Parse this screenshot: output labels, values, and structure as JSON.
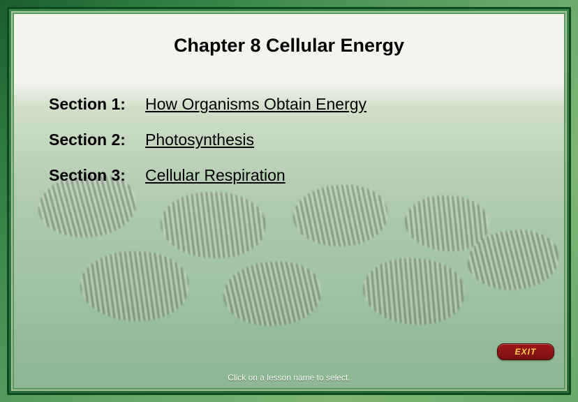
{
  "chapter": {
    "number": "Chapter 8",
    "title": "Cellular Energy",
    "full": "Chapter 8   Cellular Energy"
  },
  "sections": [
    {
      "label": "Section 1:",
      "title": "How Organisms Obtain Energy"
    },
    {
      "label": "Section 2:",
      "title": "Photosynthesis"
    },
    {
      "label": "Section 3:",
      "title": "Cellular Respiration"
    }
  ],
  "exit_label": "EXIT",
  "instruction": "Click on a lesson name to select.",
  "style": {
    "frame_gradient": [
      "#1a5c2e",
      "#2d7a3f",
      "#4a9456",
      "#6ba868",
      "#7fb575"
    ],
    "border_outer": "#0d4a1f",
    "border_inner": "#a8c89a",
    "content_bg_top": "#f5f5f0",
    "content_bg_bottom": "#96bc9b",
    "title_color": "#000000",
    "title_fontsize": 27,
    "section_fontsize": 23,
    "link_underline": true,
    "exit_bg": [
      "#a01818",
      "#7a0f0f"
    ],
    "exit_text_color": "#ffd24a",
    "instruction_color": "#ffffff",
    "instruction_fontsize": 12,
    "zebra_stripe_dark": "#2a2a2a",
    "zebra_stripe_light": "#e8e8e0",
    "zebra_opacity": 0.35
  }
}
